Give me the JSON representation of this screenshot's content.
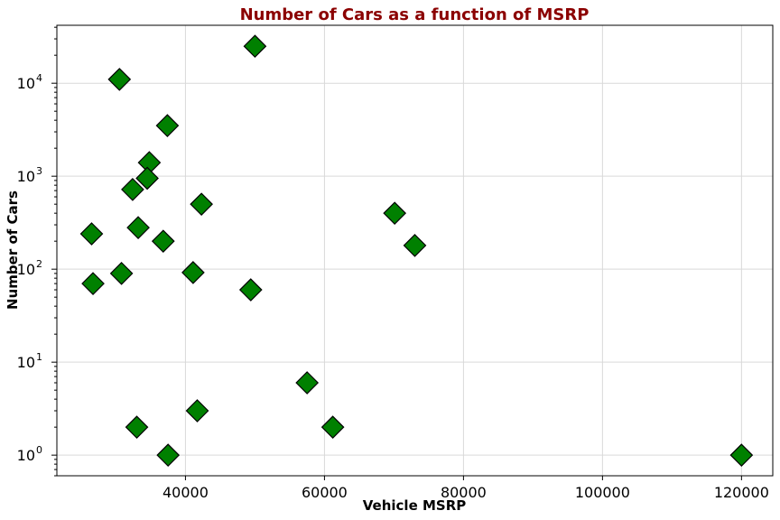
{
  "chart_data": {
    "type": "scatter",
    "title": "Number of Cars as a function of MSRP",
    "xlabel": "Vehicle MSRP",
    "ylabel": "Number of Cars",
    "xlim": [
      21500,
      124500
    ],
    "ylim": [
      0.6,
      42000
    ],
    "yscale": "log",
    "grid": true,
    "x_ticks": [
      40000,
      60000,
      80000,
      100000,
      120000
    ],
    "y_ticks": [
      1,
      10,
      100,
      1000,
      10000
    ],
    "marker": "diamond",
    "colors": {
      "title": "#8b0000",
      "marker_fill": "#008000",
      "marker_edge": "#000000"
    },
    "points": [
      {
        "x": 50000,
        "y": 25000
      },
      {
        "x": 30500,
        "y": 11000
      },
      {
        "x": 37400,
        "y": 3500
      },
      {
        "x": 34800,
        "y": 1400
      },
      {
        "x": 34500,
        "y": 950
      },
      {
        "x": 32400,
        "y": 720
      },
      {
        "x": 42300,
        "y": 500
      },
      {
        "x": 70100,
        "y": 400
      },
      {
        "x": 33200,
        "y": 280
      },
      {
        "x": 26500,
        "y": 240
      },
      {
        "x": 36800,
        "y": 200
      },
      {
        "x": 73000,
        "y": 180
      },
      {
        "x": 41100,
        "y": 92
      },
      {
        "x": 30800,
        "y": 90
      },
      {
        "x": 26700,
        "y": 70
      },
      {
        "x": 49400,
        "y": 60
      },
      {
        "x": 57500,
        "y": 6
      },
      {
        "x": 41700,
        "y": 3
      },
      {
        "x": 33000,
        "y": 2
      },
      {
        "x": 61200,
        "y": 2
      },
      {
        "x": 37500,
        "y": 1
      },
      {
        "x": 120000,
        "y": 1
      }
    ]
  }
}
